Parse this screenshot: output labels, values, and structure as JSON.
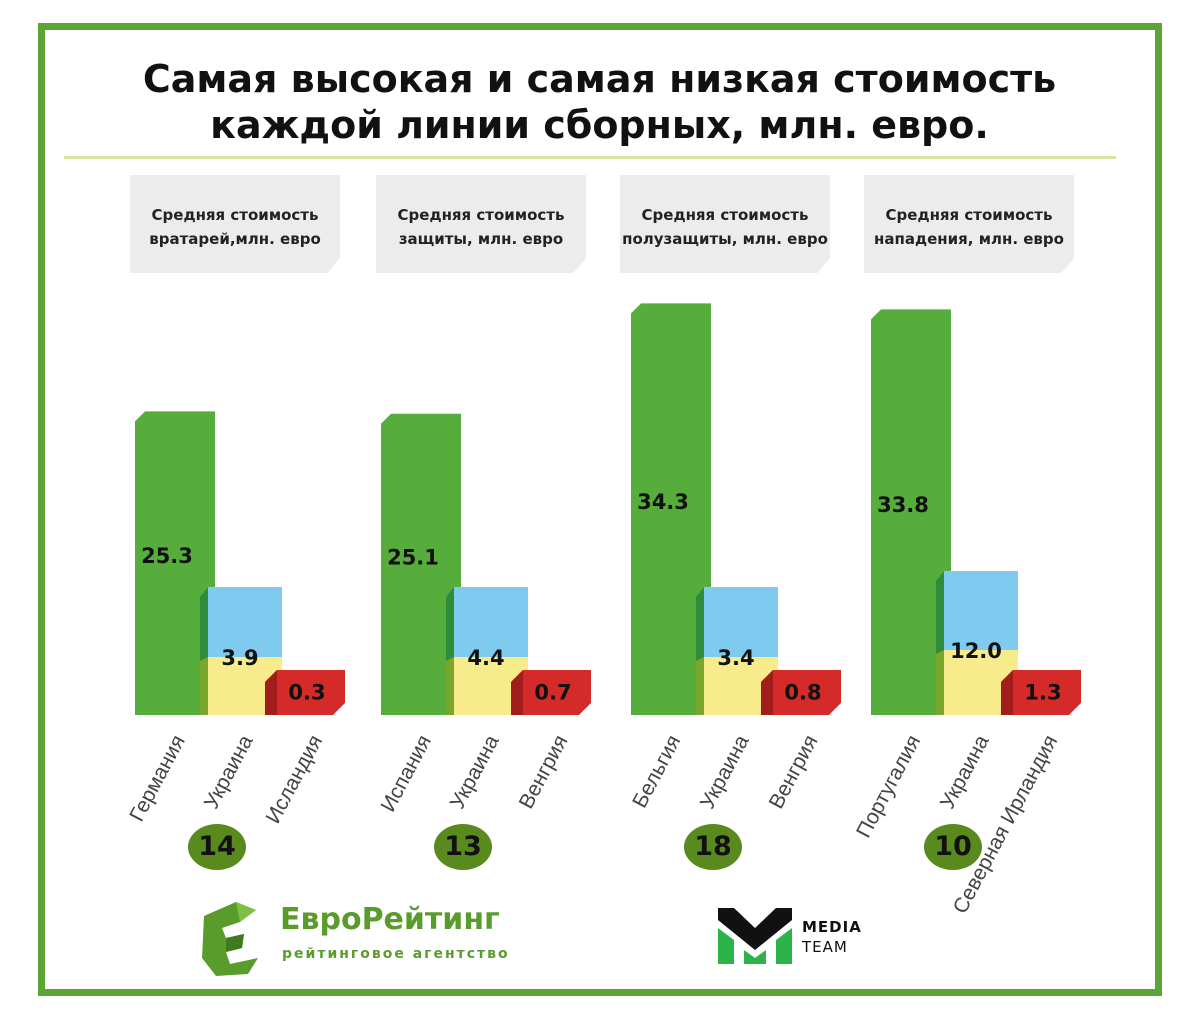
{
  "title_line1": "Самая высокая и самая низкая стоимость",
  "title_line2": "каждой линии сборных, млн. евро.",
  "colors": {
    "frame": "#5aa536",
    "high": "#56ad3b",
    "ukraine_blue": "#7ecbef",
    "ukraine_yellow": "#f7eb8b",
    "low": "#d42a2a",
    "count_circle": "#5a8a1e"
  },
  "chart_data": [
    {
      "type": "bar",
      "caption": [
        "Средняя стоимость",
        "вратарей,млн. евро"
      ],
      "categories": [
        "Германия",
        "Украина",
        "Исландия"
      ],
      "values": [
        25.3,
        3.9,
        0.3
      ],
      "value_labels": [
        "25.3",
        "3.9",
        "0.3"
      ],
      "count": "14"
    },
    {
      "type": "bar",
      "caption": [
        "Средняя стоимость",
        "защиты, млн. евро"
      ],
      "categories": [
        "Испания",
        "Украина",
        "Венгрия"
      ],
      "values": [
        25.1,
        4.4,
        0.7
      ],
      "value_labels": [
        "25.1",
        "4.4",
        "0.7"
      ],
      "count": "13"
    },
    {
      "type": "bar",
      "caption": [
        "Средняя стоимость",
        "полузащиты, млн. евро"
      ],
      "categories": [
        "Бельгия",
        "Украина",
        "Венгрия"
      ],
      "values": [
        34.3,
        3.4,
        0.8
      ],
      "value_labels": [
        "34.3",
        "3.4",
        "0.8"
      ],
      "count": "18"
    },
    {
      "type": "bar",
      "caption": [
        "Средняя стоимость",
        "нападения, млн. евро"
      ],
      "categories": [
        "Португалия",
        "Украина",
        "Северная Ирландия"
      ],
      "values": [
        33.8,
        12.0,
        1.3
      ],
      "value_labels": [
        "33.8",
        "12.0",
        "1.3"
      ],
      "count": "10"
    }
  ],
  "logos": {
    "eurorating": {
      "name_part1": "Евро",
      "name_part2": "Рейтинг",
      "subtitle": "рейтинговое  агентство"
    },
    "mediateam": {
      "line1": "MEDIA",
      "line2": "TEAM"
    }
  }
}
